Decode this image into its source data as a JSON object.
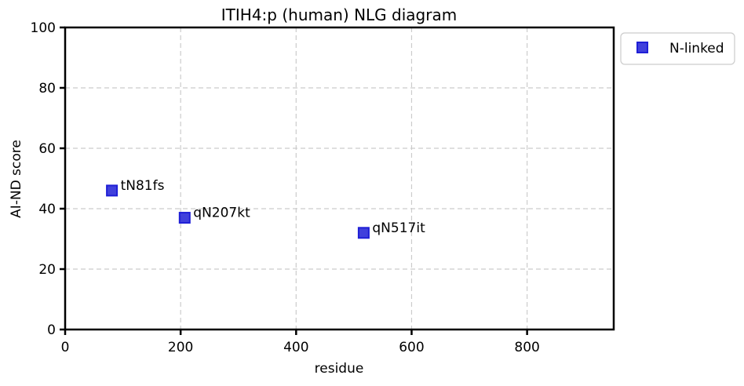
{
  "chart_data": {
    "type": "scatter",
    "title": "ITIH4:p (human) NLG diagram",
    "xlabel": "residue",
    "ylabel": "AI-ND score",
    "xlim": [
      0,
      950
    ],
    "ylim": [
      0,
      100
    ],
    "xticks": [
      0,
      200,
      400,
      600,
      800
    ],
    "yticks": [
      0,
      20,
      40,
      60,
      80,
      100
    ],
    "grid": true,
    "legend_position": "outside-top-right",
    "series": [
      {
        "name": "N-linked",
        "color": "#1f1fd6",
        "marker": "square",
        "points": [
          {
            "x": 81,
            "y": 46,
            "label": "tN81fs"
          },
          {
            "x": 207,
            "y": 37,
            "label": "qN207kt"
          },
          {
            "x": 517,
            "y": 32,
            "label": "qN517it"
          }
        ]
      }
    ]
  }
}
